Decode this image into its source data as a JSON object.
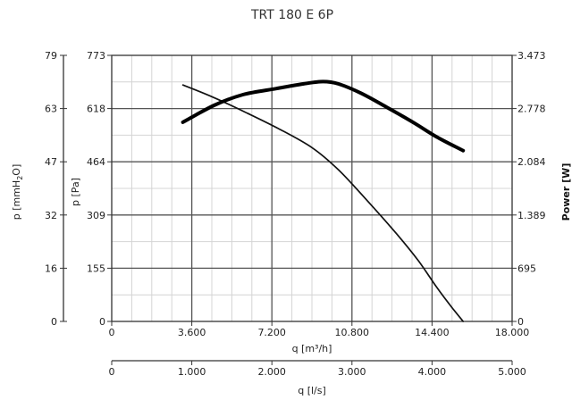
{
  "chart_data": {
    "type": "line",
    "title": "TRT 180 E 6P",
    "x_axis": {
      "label": "q [m³/h]",
      "range": [
        0,
        18000
      ],
      "ticks": [
        0,
        3600,
        7200,
        10800,
        14400,
        18000
      ],
      "tick_labels": [
        "0",
        "3.600",
        "7.200",
        "10.800",
        "14.400",
        "18.000"
      ]
    },
    "x2_axis": {
      "label": "q [l/s]",
      "range": [
        0,
        5000
      ],
      "tick_labels": [
        "0",
        "1.000",
        "2.000",
        "3.000",
        "4.000",
        "5.000"
      ]
    },
    "y_axis_pa": {
      "label": "p [Pa]",
      "range": [
        0,
        773
      ],
      "tick_labels": [
        "0",
        "155",
        "309",
        "464",
        "618",
        "773"
      ]
    },
    "y_axis_mmh2o": {
      "label_main": "p [mmH",
      "label_sub": "2",
      "label_end": "O]",
      "tick_labels": [
        "0",
        "16",
        "32",
        "47",
        "63",
        "79"
      ]
    },
    "y_axis_power": {
      "label": "Power [W]",
      "range": [
        0,
        3473
      ],
      "tick_labels": [
        "0",
        "695",
        "1.389",
        "2.084",
        "2.778",
        "3.473"
      ]
    },
    "grid": true,
    "series": [
      {
        "role": "pressure",
        "color": "#111111",
        "x": [
          3200,
          4500,
          6000,
          7500,
          9000,
          10200,
          11500,
          12800,
          13800,
          14600,
          15300,
          15800
        ],
        "y": [
          687,
          653,
          608,
          560,
          505,
          440,
          350,
          255,
          175,
          100,
          40,
          0
        ]
      },
      {
        "role": "power",
        "color": "#000000",
        "x": [
          3200,
          4600,
          5900,
          7400,
          8600,
          9500,
          10200,
          11200,
          12400,
          13600,
          14600,
          15800
        ],
        "y": [
          2600,
          2820,
          2960,
          3040,
          3100,
          3130,
          3100,
          2980,
          2790,
          2590,
          2410,
          2230
        ]
      }
    ]
  }
}
